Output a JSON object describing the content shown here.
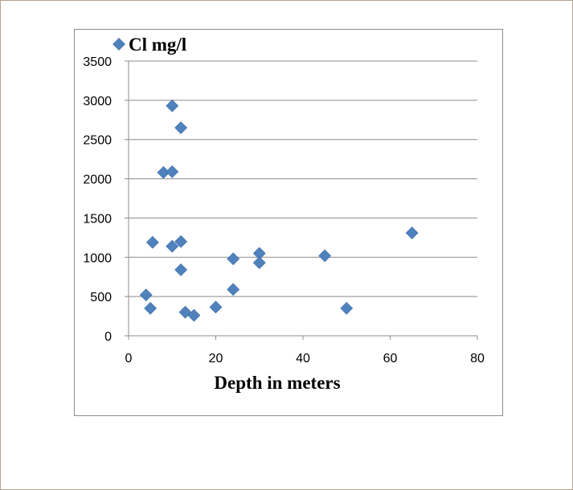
{
  "chart_data": {
    "type": "scatter",
    "title": "",
    "xlabel": "Depth in meters",
    "ylabel": "",
    "xlim": [
      0,
      80
    ],
    "ylim": [
      0,
      3500
    ],
    "xticks": [
      "0",
      "20",
      "40",
      "60",
      "80"
    ],
    "yticks": [
      "0",
      "500",
      "1000",
      "1500",
      "2000",
      "2500",
      "3000",
      "3500"
    ],
    "grid": "horizontal",
    "legend_position": "top-left",
    "series": [
      {
        "name": "Cl mg/l",
        "color": "#4f81bd",
        "marker": "diamond",
        "points": [
          {
            "x": 4,
            "y": 520
          },
          {
            "x": 5,
            "y": 350
          },
          {
            "x": 5.5,
            "y": 1190
          },
          {
            "x": 8,
            "y": 2080
          },
          {
            "x": 10,
            "y": 2930
          },
          {
            "x": 10,
            "y": 2090
          },
          {
            "x": 10,
            "y": 1140
          },
          {
            "x": 12,
            "y": 2650
          },
          {
            "x": 12,
            "y": 1200
          },
          {
            "x": 12,
            "y": 840
          },
          {
            "x": 13,
            "y": 300
          },
          {
            "x": 15,
            "y": 260
          },
          {
            "x": 20,
            "y": 365
          },
          {
            "x": 24,
            "y": 980
          },
          {
            "x": 24,
            "y": 590
          },
          {
            "x": 30,
            "y": 1050
          },
          {
            "x": 30,
            "y": 930
          },
          {
            "x": 45,
            "y": 1020
          },
          {
            "x": 50,
            "y": 350
          },
          {
            "x": 65,
            "y": 1310
          }
        ]
      }
    ]
  }
}
